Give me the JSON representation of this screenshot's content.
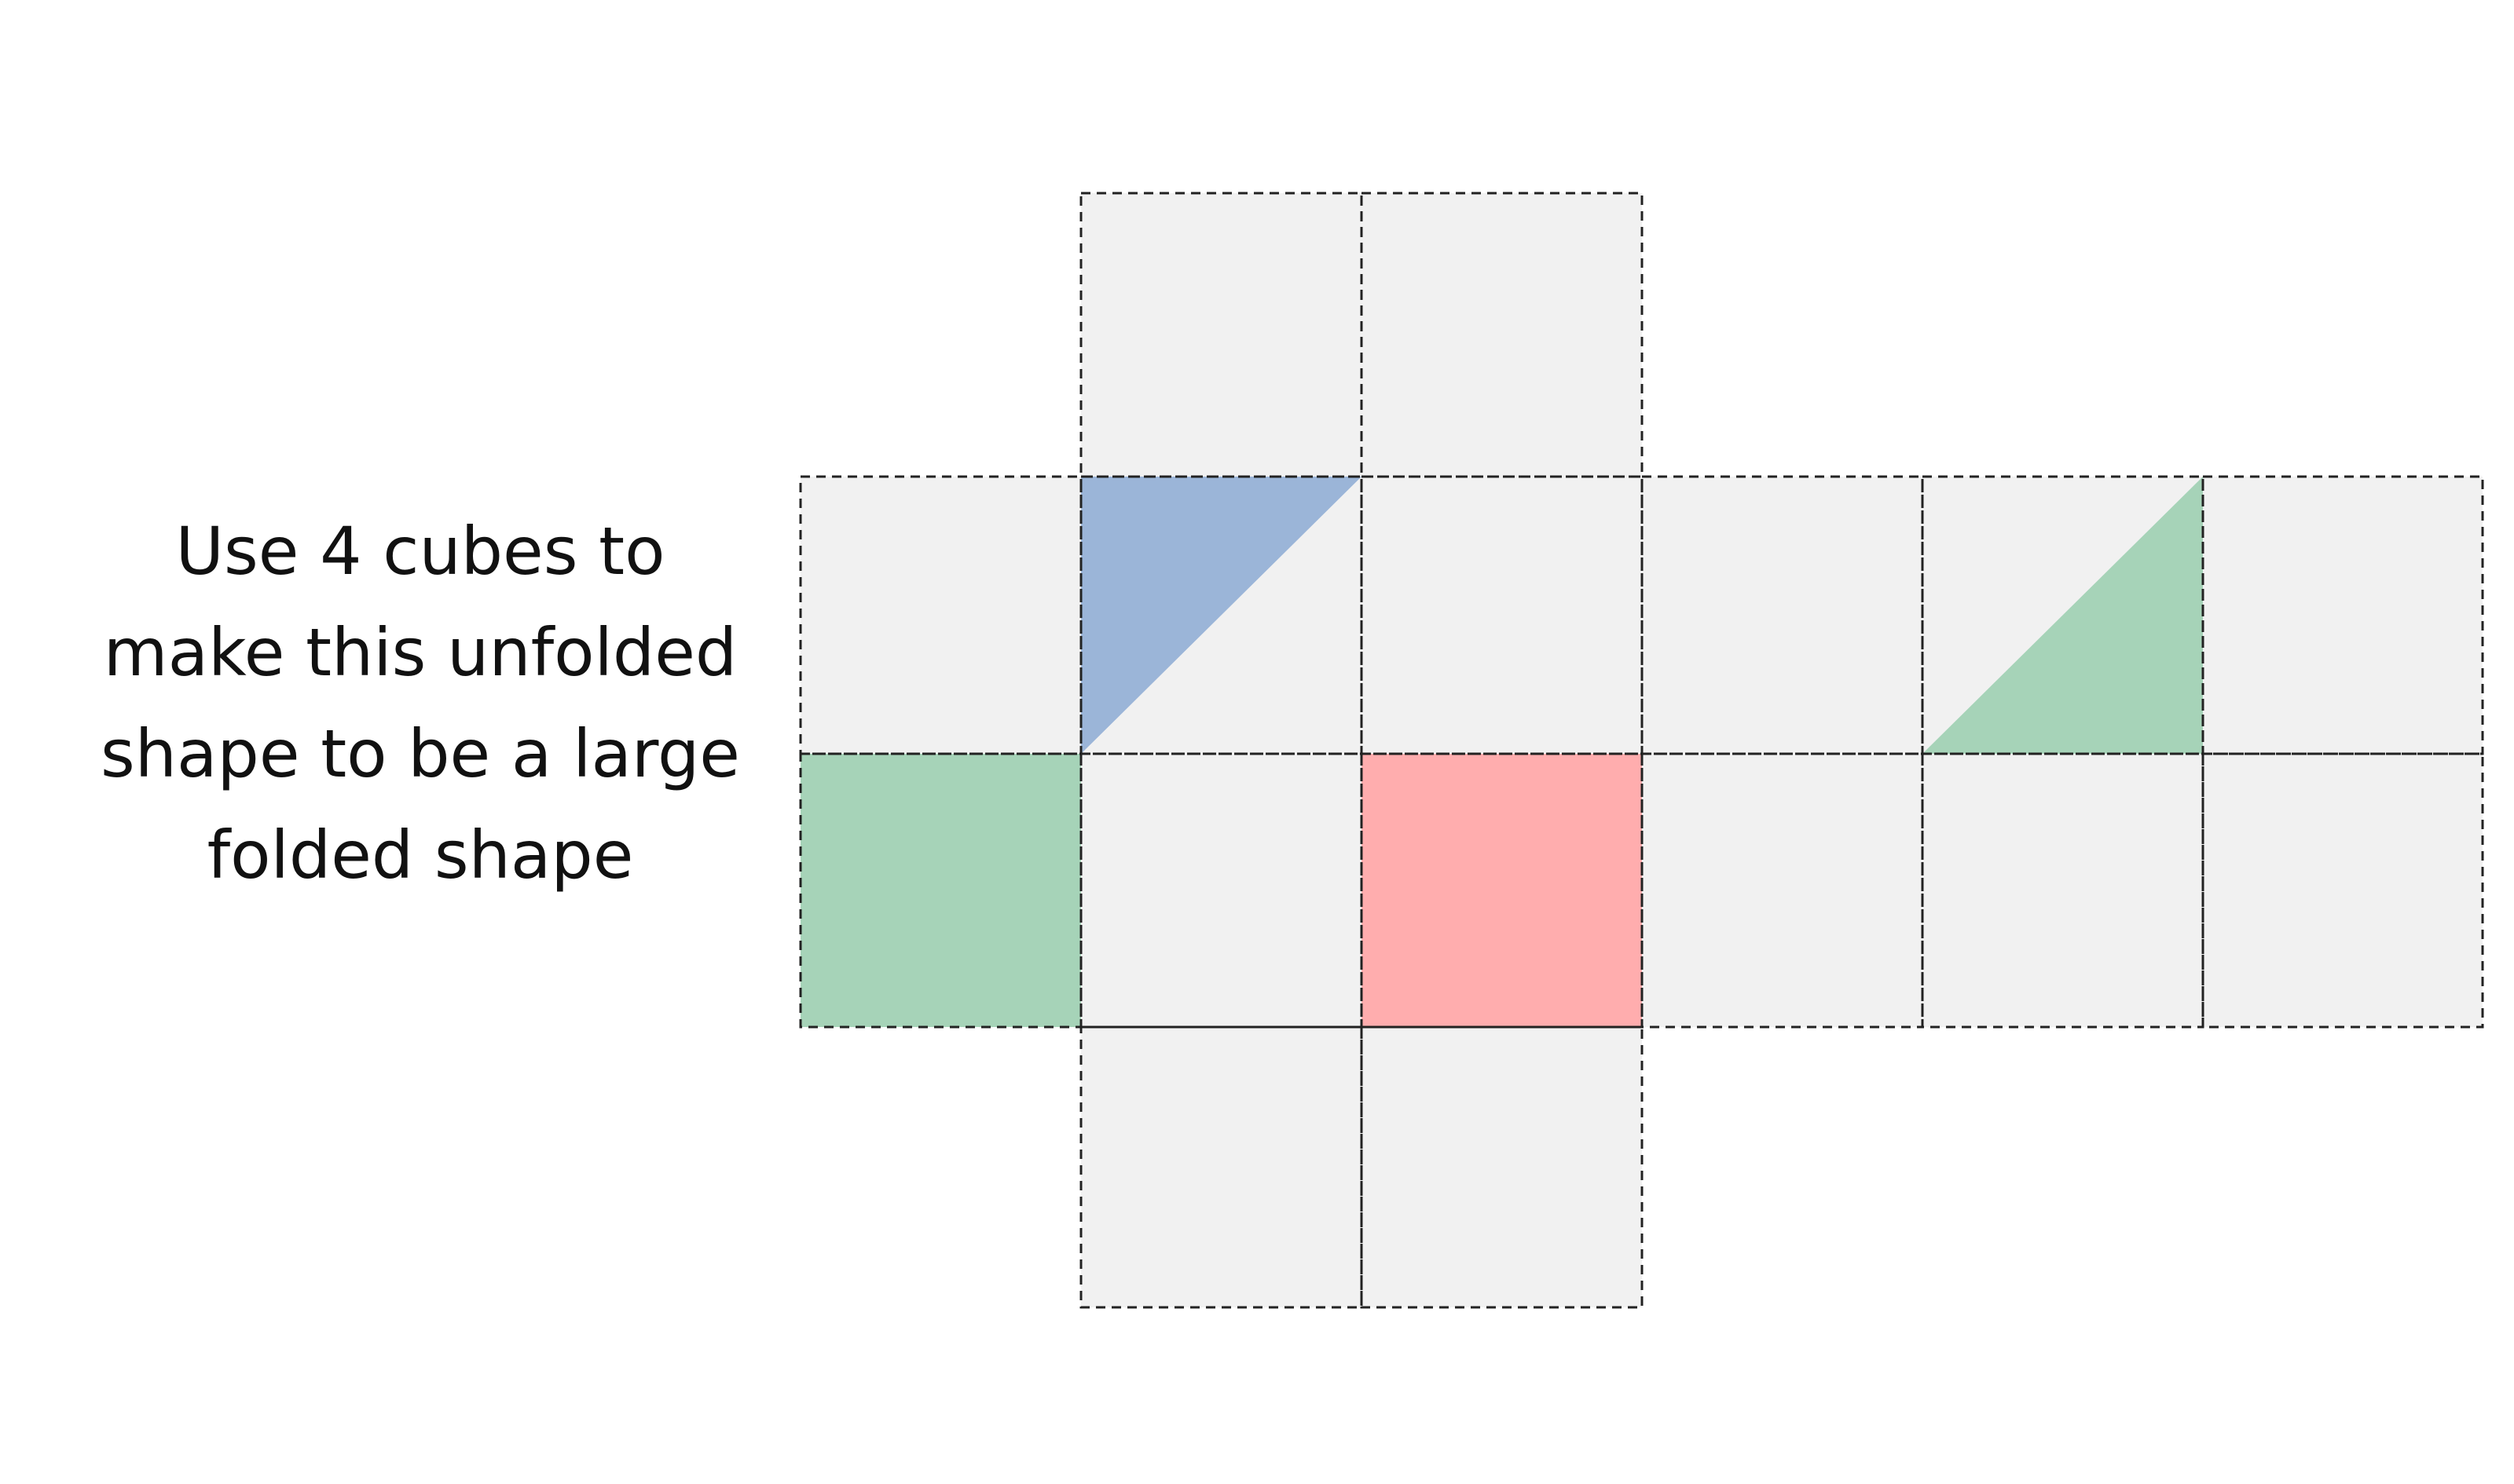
{
  "instruction": {
    "lines": [
      "Use 4 cubes to",
      "make this unfolded",
      "shape to be a large",
      "folded shape"
    ]
  },
  "net": {
    "colors": {
      "face": "#f1f1f1",
      "border": "#222222",
      "blue": "#9bb5d8",
      "green": "#a6d3b8",
      "red": "#ffadae"
    },
    "fills": [
      {
        "row": 1,
        "col": 1,
        "kind": "triangle-top-left",
        "color": "blue"
      },
      {
        "row": 1,
        "col": 4,
        "kind": "triangle-bottom-right",
        "color": "green"
      },
      {
        "row": 2,
        "col": 0,
        "kind": "square",
        "color": "green"
      },
      {
        "row": 2,
        "col": 2,
        "kind": "square",
        "color": "red"
      }
    ]
  }
}
